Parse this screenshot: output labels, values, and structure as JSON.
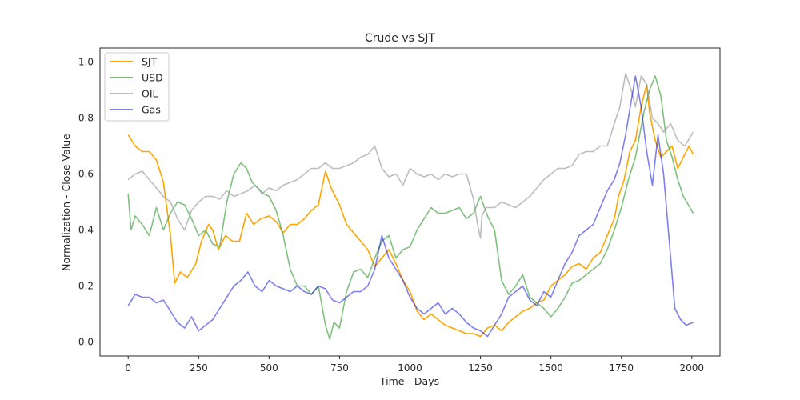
{
  "chart_data": {
    "type": "line",
    "title": "Crude vs SJT",
    "xlabel": "Time - Days",
    "ylabel": "Normalization - Close Value",
    "xlim": [
      -100,
      2100
    ],
    "ylim": [
      -0.05,
      1.05
    ],
    "xticks": [
      0,
      250,
      500,
      750,
      1000,
      1250,
      1500,
      1750,
      2000
    ],
    "yticks": [
      0.0,
      0.2,
      0.4,
      0.6,
      0.8,
      1.0
    ],
    "xtick_labels": [
      "0",
      "250",
      "500",
      "750",
      "1000",
      "1250",
      "1500",
      "1750",
      "2000"
    ],
    "ytick_labels": [
      "0.0",
      "0.2",
      "0.4",
      "0.6",
      "0.8",
      "1.0"
    ],
    "legend_position": "top-left",
    "grid": false,
    "series": [
      {
        "name": "SJT",
        "color": "#FFA500",
        "opacity": 1.0,
        "x": [
          0,
          25,
          50,
          75,
          100,
          125,
          150,
          165,
          185,
          210,
          240,
          260,
          285,
          300,
          320,
          345,
          370,
          395,
          420,
          445,
          470,
          500,
          525,
          550,
          575,
          600,
          625,
          650,
          675,
          700,
          720,
          750,
          775,
          800,
          825,
          850,
          875,
          900,
          925,
          950,
          975,
          1000,
          1025,
          1050,
          1075,
          1100,
          1125,
          1150,
          1175,
          1200,
          1225,
          1250,
          1275,
          1300,
          1325,
          1350,
          1375,
          1400,
          1425,
          1450,
          1475,
          1500,
          1525,
          1550,
          1575,
          1600,
          1625,
          1650,
          1675,
          1700,
          1725,
          1740,
          1760,
          1780,
          1800,
          1820,
          1840,
          1850,
          1870,
          1890,
          1910,
          1930,
          1950,
          1970,
          1990,
          2005
        ],
        "y": [
          0.74,
          0.7,
          0.68,
          0.68,
          0.65,
          0.57,
          0.38,
          0.21,
          0.25,
          0.23,
          0.28,
          0.36,
          0.42,
          0.4,
          0.33,
          0.38,
          0.36,
          0.36,
          0.46,
          0.42,
          0.44,
          0.45,
          0.43,
          0.39,
          0.42,
          0.42,
          0.44,
          0.47,
          0.49,
          0.61,
          0.55,
          0.49,
          0.42,
          0.39,
          0.36,
          0.33,
          0.27,
          0.3,
          0.33,
          0.28,
          0.22,
          0.18,
          0.11,
          0.08,
          0.1,
          0.08,
          0.06,
          0.05,
          0.04,
          0.03,
          0.03,
          0.02,
          0.05,
          0.06,
          0.04,
          0.07,
          0.09,
          0.11,
          0.12,
          0.14,
          0.15,
          0.2,
          0.22,
          0.24,
          0.27,
          0.28,
          0.26,
          0.3,
          0.32,
          0.38,
          0.44,
          0.52,
          0.58,
          0.68,
          0.72,
          0.84,
          0.92,
          0.82,
          0.72,
          0.66,
          0.68,
          0.7,
          0.62,
          0.66,
          0.7,
          0.67
        ]
      },
      {
        "name": "USD",
        "color": "#3A9E3A",
        "opacity": 0.65,
        "x": [
          0,
          10,
          25,
          50,
          75,
          100,
          125,
          150,
          175,
          200,
          225,
          250,
          275,
          300,
          325,
          350,
          375,
          400,
          420,
          440,
          460,
          480,
          500,
          525,
          550,
          575,
          600,
          625,
          650,
          675,
          700,
          715,
          730,
          750,
          775,
          800,
          825,
          850,
          875,
          900,
          925,
          950,
          975,
          1000,
          1025,
          1050,
          1075,
          1100,
          1125,
          1150,
          1175,
          1200,
          1225,
          1250,
          1275,
          1300,
          1325,
          1350,
          1375,
          1400,
          1425,
          1450,
          1475,
          1500,
          1525,
          1550,
          1575,
          1600,
          1625,
          1650,
          1675,
          1700,
          1725,
          1750,
          1775,
          1800,
          1830,
          1850,
          1870,
          1890,
          1910,
          1930,
          1950,
          1970,
          2005
        ],
        "y": [
          0.53,
          0.4,
          0.45,
          0.42,
          0.38,
          0.48,
          0.4,
          0.46,
          0.5,
          0.49,
          0.44,
          0.38,
          0.4,
          0.35,
          0.34,
          0.5,
          0.6,
          0.64,
          0.62,
          0.57,
          0.55,
          0.53,
          0.52,
          0.47,
          0.38,
          0.26,
          0.2,
          0.2,
          0.17,
          0.2,
          0.06,
          0.01,
          0.07,
          0.05,
          0.18,
          0.25,
          0.26,
          0.23,
          0.3,
          0.36,
          0.38,
          0.3,
          0.33,
          0.34,
          0.4,
          0.44,
          0.48,
          0.46,
          0.46,
          0.47,
          0.48,
          0.44,
          0.46,
          0.52,
          0.45,
          0.4,
          0.22,
          0.17,
          0.2,
          0.24,
          0.16,
          0.14,
          0.12,
          0.09,
          0.12,
          0.16,
          0.21,
          0.22,
          0.24,
          0.26,
          0.28,
          0.33,
          0.4,
          0.48,
          0.58,
          0.66,
          0.82,
          0.9,
          0.95,
          0.88,
          0.72,
          0.66,
          0.58,
          0.52,
          0.46
        ]
      },
      {
        "name": "OIL",
        "color": "#9A9A9A",
        "opacity": 0.65,
        "x": [
          0,
          25,
          50,
          75,
          100,
          125,
          150,
          175,
          200,
          225,
          250,
          275,
          300,
          325,
          350,
          375,
          400,
          425,
          450,
          475,
          500,
          525,
          550,
          575,
          600,
          625,
          650,
          675,
          700,
          725,
          750,
          775,
          800,
          825,
          850,
          875,
          900,
          925,
          950,
          975,
          1000,
          1025,
          1050,
          1075,
          1100,
          1125,
          1150,
          1175,
          1200,
          1225,
          1240,
          1250,
          1255,
          1270,
          1300,
          1325,
          1350,
          1375,
          1400,
          1425,
          1450,
          1475,
          1500,
          1525,
          1550,
          1575,
          1600,
          1625,
          1650,
          1675,
          1700,
          1725,
          1745,
          1765,
          1785,
          1800,
          1820,
          1840,
          1860,
          1880,
          1900,
          1925,
          1950,
          1975,
          2005
        ],
        "y": [
          0.58,
          0.6,
          0.61,
          0.58,
          0.55,
          0.52,
          0.5,
          0.44,
          0.4,
          0.47,
          0.5,
          0.52,
          0.52,
          0.51,
          0.54,
          0.52,
          0.53,
          0.54,
          0.56,
          0.53,
          0.55,
          0.54,
          0.56,
          0.57,
          0.58,
          0.6,
          0.62,
          0.62,
          0.64,
          0.62,
          0.62,
          0.63,
          0.64,
          0.66,
          0.67,
          0.7,
          0.62,
          0.59,
          0.6,
          0.56,
          0.62,
          0.6,
          0.59,
          0.6,
          0.58,
          0.6,
          0.59,
          0.6,
          0.6,
          0.51,
          0.42,
          0.37,
          0.45,
          0.48,
          0.48,
          0.5,
          0.49,
          0.48,
          0.5,
          0.52,
          0.55,
          0.58,
          0.6,
          0.62,
          0.62,
          0.63,
          0.67,
          0.68,
          0.68,
          0.7,
          0.7,
          0.78,
          0.84,
          0.96,
          0.9,
          0.84,
          0.95,
          0.92,
          0.8,
          0.78,
          0.75,
          0.78,
          0.72,
          0.7,
          0.75
        ]
      },
      {
        "name": "Gas",
        "color": "#0000DD",
        "opacity": 0.5,
        "x": [
          0,
          25,
          50,
          75,
          100,
          125,
          150,
          175,
          200,
          225,
          250,
          275,
          300,
          325,
          350,
          375,
          400,
          425,
          450,
          475,
          500,
          525,
          550,
          575,
          600,
          625,
          650,
          675,
          700,
          725,
          750,
          775,
          800,
          825,
          850,
          875,
          900,
          925,
          950,
          975,
          1000,
          1025,
          1050,
          1075,
          1100,
          1125,
          1150,
          1175,
          1200,
          1225,
          1250,
          1275,
          1300,
          1325,
          1350,
          1375,
          1400,
          1425,
          1450,
          1475,
          1500,
          1525,
          1550,
          1575,
          1600,
          1625,
          1650,
          1675,
          1700,
          1725,
          1745,
          1765,
          1785,
          1800,
          1820,
          1840,
          1860,
          1880,
          1900,
          1920,
          1940,
          1960,
          1980,
          2005
        ],
        "y": [
          0.13,
          0.17,
          0.16,
          0.16,
          0.14,
          0.15,
          0.11,
          0.07,
          0.05,
          0.09,
          0.04,
          0.06,
          0.08,
          0.12,
          0.16,
          0.2,
          0.22,
          0.25,
          0.2,
          0.18,
          0.22,
          0.2,
          0.19,
          0.18,
          0.2,
          0.18,
          0.17,
          0.2,
          0.19,
          0.15,
          0.14,
          0.16,
          0.18,
          0.18,
          0.2,
          0.26,
          0.38,
          0.3,
          0.26,
          0.22,
          0.16,
          0.12,
          0.1,
          0.12,
          0.14,
          0.1,
          0.12,
          0.1,
          0.07,
          0.05,
          0.04,
          0.02,
          0.06,
          0.1,
          0.16,
          0.18,
          0.2,
          0.15,
          0.13,
          0.18,
          0.16,
          0.22,
          0.28,
          0.32,
          0.38,
          0.4,
          0.42,
          0.48,
          0.54,
          0.58,
          0.64,
          0.74,
          0.86,
          0.95,
          0.84,
          0.68,
          0.56,
          0.74,
          0.6,
          0.36,
          0.12,
          0.08,
          0.06,
          0.07
        ]
      }
    ]
  }
}
